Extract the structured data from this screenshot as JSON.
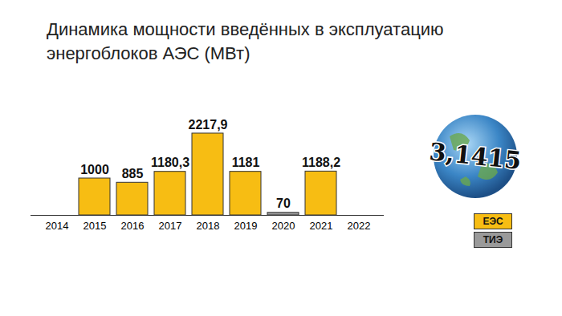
{
  "chart_data": {
    "type": "bar",
    "title": "Динамика мощности введённых в эксплуатацию энергоблоков АЭС (МВт)",
    "categories": [
      "2014",
      "2015",
      "2016",
      "2017",
      "2018",
      "2019",
      "2020",
      "2021",
      "2022"
    ],
    "series": [
      {
        "name": "ЕЭС",
        "color": "#f7bd13",
        "values": [
          null,
          1000,
          885,
          1180.3,
          2217.9,
          1181,
          null,
          1188.2,
          null
        ],
        "value_labels": [
          null,
          "1000",
          "885",
          "1180,3",
          "2217,9",
          "1181",
          null,
          "1188,2",
          null
        ]
      },
      {
        "name": "ТИЭ",
        "color": "#9a9a9a",
        "values": [
          null,
          null,
          null,
          null,
          null,
          null,
          70,
          null,
          null
        ],
        "value_labels": [
          null,
          null,
          null,
          null,
          null,
          null,
          "70",
          null,
          null
        ]
      }
    ],
    "ylim": [
      0,
      3000
    ],
    "data_labels": true,
    "tick_labels": "x",
    "grid": false,
    "legend": "right",
    "annotations": [
      "3,1415"
    ]
  }
}
